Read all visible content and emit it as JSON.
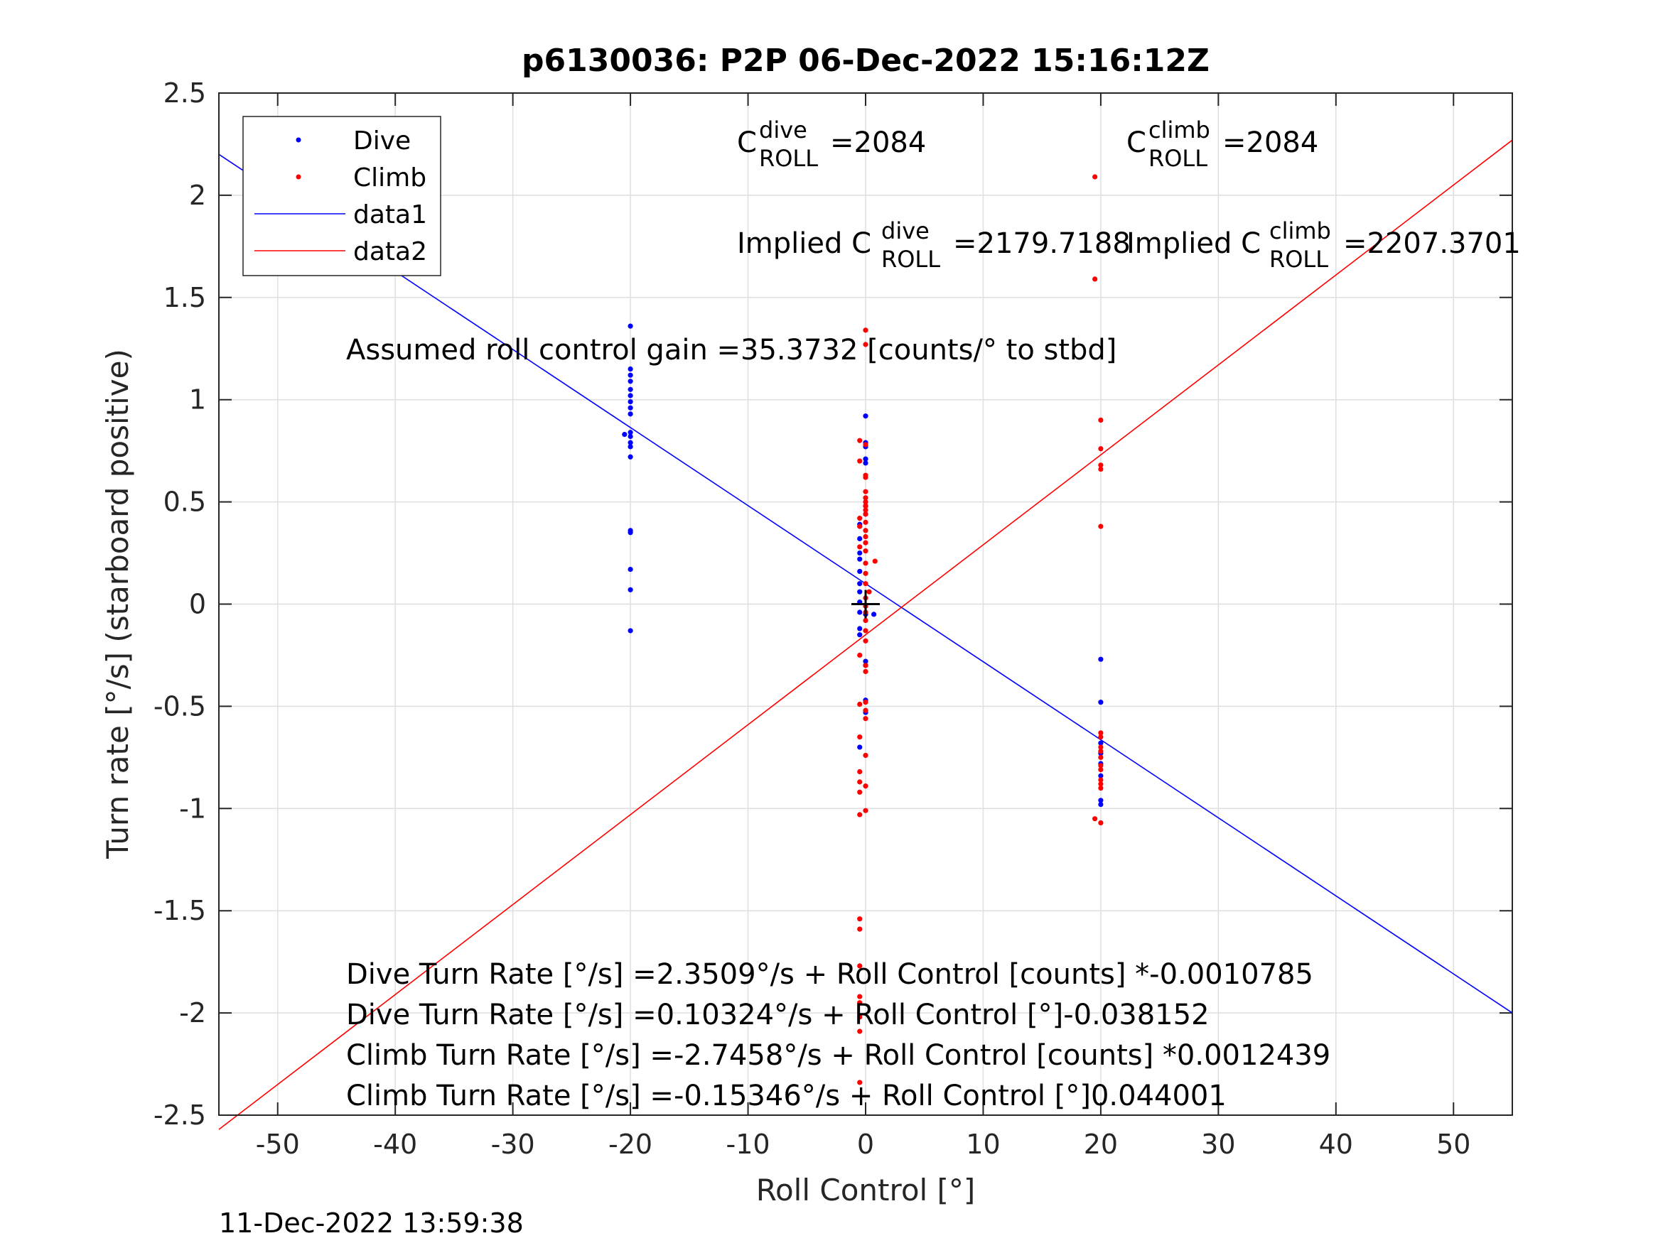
{
  "chart_data": {
    "type": "scatter",
    "title": "p6130036: P2P 06-Dec-2022 15:16:12Z",
    "xlabel": "Roll Control [°]",
    "ylabel": "Turn rate [°/s] (starboard positive)",
    "xlim": [
      -55,
      55
    ],
    "ylim": [
      -2.5,
      2.5
    ],
    "xticks": [
      "-50",
      "-40",
      "-30",
      "-20",
      "-10",
      "0",
      "10",
      "20",
      "30",
      "40",
      "50"
    ],
    "yticks": [
      "2.5",
      "2",
      "1.5",
      "1",
      "0.5",
      "0",
      "-0.5",
      "-1",
      "-1.5",
      "-2",
      "-2.5"
    ],
    "grid": true,
    "legend_position": "top-left",
    "legend": [
      "Dive",
      "Climb",
      "data1",
      "data2"
    ],
    "series": [
      {
        "name": "Dive",
        "color": "#0000ff",
        "marker": "dot",
        "points": [
          [
            -20,
            1.36
          ],
          [
            -20,
            1.15
          ],
          [
            -20,
            1.12
          ],
          [
            -20,
            1.09
          ],
          [
            -20,
            1.05
          ],
          [
            -20,
            1.02
          ],
          [
            -20,
            0.99
          ],
          [
            -20,
            0.96
          ],
          [
            -20,
            0.93
          ],
          [
            -20,
            0.84
          ],
          [
            -20,
            0.82
          ],
          [
            -20,
            0.79
          ],
          [
            -20,
            0.77
          ],
          [
            -20,
            0.72
          ],
          [
            -20.5,
            0.83
          ],
          [
            -20,
            0.36
          ],
          [
            -20,
            0.35
          ],
          [
            -20,
            0.17
          ],
          [
            -20,
            0.07
          ],
          [
            -20,
            -0.13
          ],
          [
            0,
            0.92
          ],
          [
            0,
            0.79
          ],
          [
            0,
            0.77
          ],
          [
            0,
            0.71
          ],
          [
            0,
            0.69
          ],
          [
            0,
            0.48
          ],
          [
            0,
            0.44
          ],
          [
            -0.5,
            0.39
          ],
          [
            -0.5,
            0.32
          ],
          [
            -0.5,
            0.25
          ],
          [
            -0.5,
            0.22
          ],
          [
            -0.5,
            0.16
          ],
          [
            -0.5,
            0.1
          ],
          [
            -0.5,
            0.06
          ],
          [
            -0.5,
            0.01
          ],
          [
            -0.5,
            -0.04
          ],
          [
            -0.5,
            -0.12
          ],
          [
            -0.5,
            -0.15
          ],
          [
            0.7,
            -0.05
          ],
          [
            0,
            -0.05
          ],
          [
            0,
            -0.28
          ],
          [
            0,
            -0.3
          ],
          [
            0,
            -0.47
          ],
          [
            0,
            -0.53
          ],
          [
            -0.5,
            -0.7
          ],
          [
            20,
            -0.27
          ],
          [
            20,
            -0.48
          ],
          [
            20,
            -0.68
          ],
          [
            20,
            -0.73
          ],
          [
            20,
            -0.78
          ],
          [
            20,
            -0.84
          ],
          [
            20,
            -0.96
          ],
          [
            20,
            -0.98
          ]
        ]
      },
      {
        "name": "Climb",
        "color": "#ff0000",
        "marker": "dot",
        "points": [
          [
            0,
            1.34
          ],
          [
            0,
            1.27
          ],
          [
            -0.5,
            0.8
          ],
          [
            0,
            0.78
          ],
          [
            -0.5,
            0.7
          ],
          [
            0,
            0.63
          ],
          [
            0,
            0.62
          ],
          [
            0,
            0.55
          ],
          [
            0,
            0.52
          ],
          [
            0,
            0.5
          ],
          [
            0,
            0.48
          ],
          [
            0,
            0.46
          ],
          [
            0,
            0.44
          ],
          [
            -0.5,
            0.42
          ],
          [
            0,
            0.4
          ],
          [
            -0.5,
            0.38
          ],
          [
            0,
            0.36
          ],
          [
            0,
            0.33
          ],
          [
            0,
            0.3
          ],
          [
            -0.5,
            0.28
          ],
          [
            0,
            0.26
          ],
          [
            0.8,
            0.21
          ],
          [
            0,
            0.2
          ],
          [
            0,
            0.15
          ],
          [
            0,
            0.1
          ],
          [
            0.3,
            0.06
          ],
          [
            0,
            0.03
          ],
          [
            0,
            -0.01
          ],
          [
            0,
            -0.04
          ],
          [
            0,
            -0.08
          ],
          [
            0,
            -0.13
          ],
          [
            0,
            -0.18
          ],
          [
            -0.5,
            -0.25
          ],
          [
            0,
            -0.3
          ],
          [
            0,
            -0.33
          ],
          [
            -0.5,
            -0.49
          ],
          [
            0,
            -0.48
          ],
          [
            0,
            -0.52
          ],
          [
            0,
            -0.56
          ],
          [
            -0.5,
            -0.65
          ],
          [
            0,
            -0.74
          ],
          [
            -0.5,
            -0.82
          ],
          [
            -0.5,
            -0.87
          ],
          [
            0,
            -0.89
          ],
          [
            -0.5,
            -0.92
          ],
          [
            0,
            -1.01
          ],
          [
            -0.5,
            -1.03
          ],
          [
            -0.5,
            -1.54
          ],
          [
            -0.5,
            -1.59
          ],
          [
            -0.5,
            -1.77
          ],
          [
            -0.5,
            -1.92
          ],
          [
            -0.5,
            -1.95
          ],
          [
            -0.5,
            -2.02
          ],
          [
            -0.5,
            -2.09
          ],
          [
            -0.5,
            -2.34
          ],
          [
            19.5,
            2.09
          ],
          [
            19.5,
            1.59
          ],
          [
            20,
            0.9
          ],
          [
            20,
            0.76
          ],
          [
            20,
            0.68
          ],
          [
            20,
            0.66
          ],
          [
            20,
            0.38
          ],
          [
            20,
            -0.63
          ],
          [
            20,
            -0.65
          ],
          [
            20,
            -0.7
          ],
          [
            20,
            -0.72
          ],
          [
            20,
            -0.75
          ],
          [
            20,
            -0.79
          ],
          [
            20,
            -0.81
          ],
          [
            20,
            -0.86
          ],
          [
            20,
            -0.88
          ],
          [
            20,
            -0.9
          ],
          [
            19.5,
            -1.05
          ],
          [
            20,
            -1.07
          ]
        ]
      },
      {
        "name": "data1",
        "color": "#0000ff",
        "marker": "line",
        "points": [
          [
            -55,
            2.2
          ],
          [
            55,
            -2.0
          ]
        ]
      },
      {
        "name": "data2",
        "color": "#ff0000",
        "marker": "line",
        "points": [
          [
            -55,
            -2.57
          ],
          [
            55,
            2.27
          ]
        ]
      }
    ],
    "origin_marker": "+",
    "annotations": {
      "c_dive_base": "C",
      "c_dive_sup": "dive",
      "c_dive_sub": "ROLL",
      "c_dive_value": "=2084",
      "c_climb_base": "C",
      "c_climb_sup": "climb",
      "c_climb_sub": "ROLL",
      "c_climb_value": "=2084",
      "implied_dive_prefix": "Implied C",
      "implied_dive_sup": "dive",
      "implied_dive_sub": "ROLL",
      "implied_dive_value": "=2179.7188",
      "implied_climb_prefix": "Implied C",
      "implied_climb_sup": "climb",
      "implied_climb_sub": "ROLL",
      "implied_climb_value": "=2207.3701",
      "gain": "Assumed roll control gain =35.3732 [counts/° to stbd]",
      "eq1": "Dive Turn Rate [°/s] =2.3509°/s + Roll Control [counts] *-0.0010785",
      "eq2": "Dive Turn Rate [°/s] =0.10324°/s + Roll Control [°]-0.038152",
      "eq3": "Climb Turn Rate [°/s] =-2.7458°/s + Roll Control [counts] *0.0012439",
      "eq4": "Climb Turn Rate [°/s] =-0.15346°/s + Roll Control [°]0.044001"
    },
    "timestamp": "11-Dec-2022 13:59:38"
  }
}
